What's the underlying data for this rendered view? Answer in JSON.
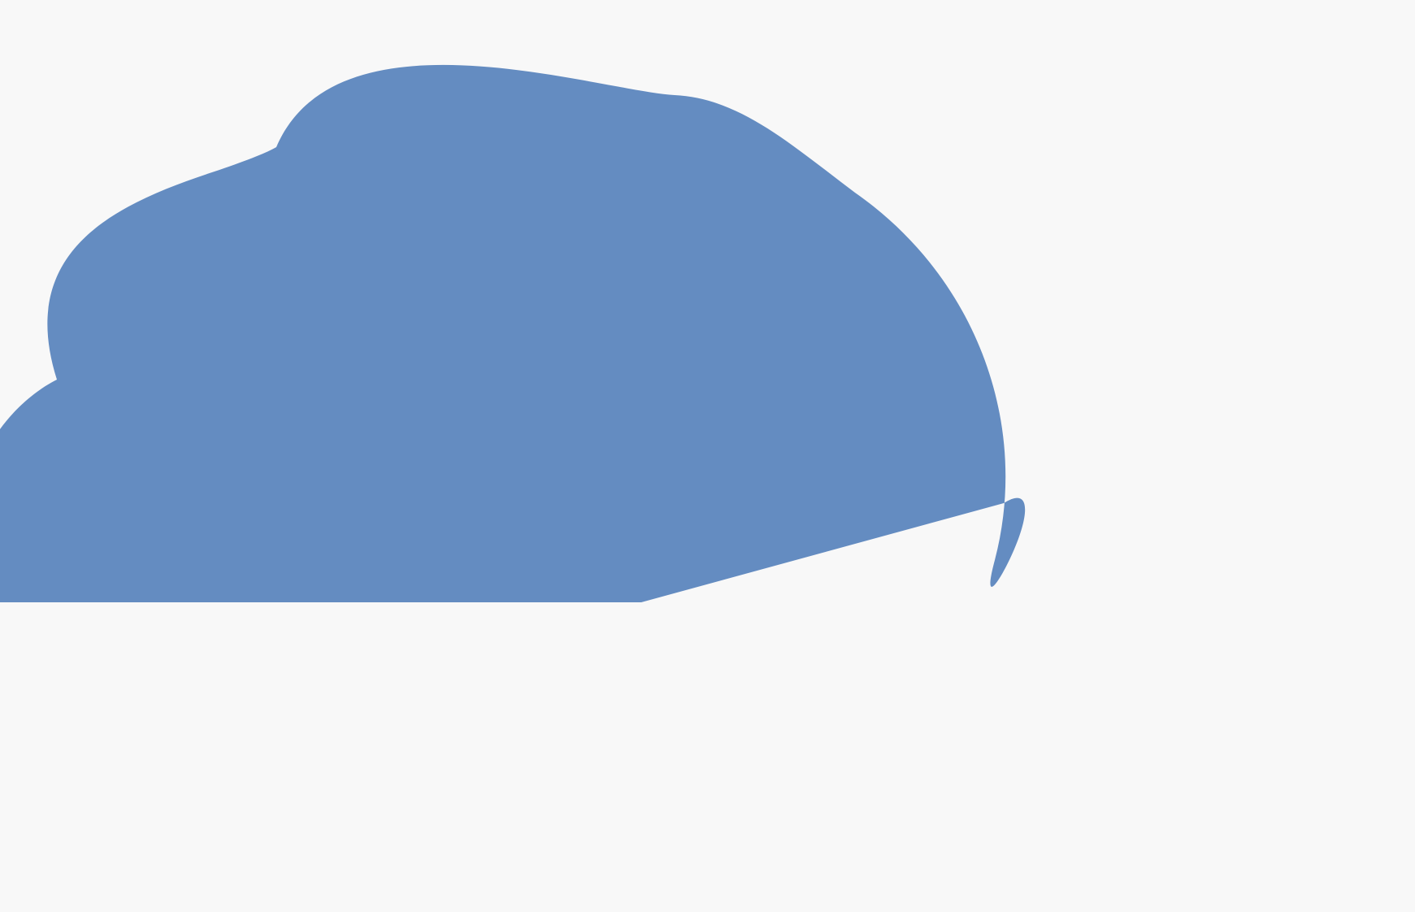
{
  "background": {
    "color": "#f8f8f8"
  },
  "shape": {
    "name": "blob-shape",
    "fill": "#648cc1"
  }
}
